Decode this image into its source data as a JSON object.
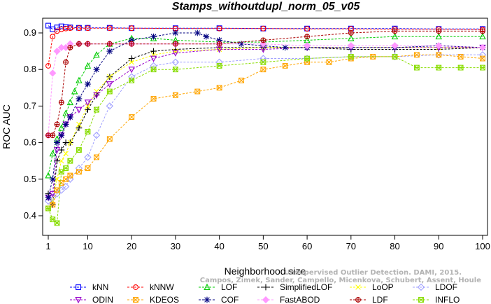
{
  "chart_data": {
    "type": "line",
    "title": "Stamps_withoutdupl_norm_05_v05",
    "xlabel": "Neighborhood size",
    "ylabel": "ROC AUC",
    "xlim": [
      0,
      100
    ],
    "ylim": [
      0.35,
      0.95
    ],
    "xticks": [
      1,
      10,
      20,
      30,
      40,
      50,
      60,
      70,
      80,
      90,
      100
    ],
    "yticks": [
      0.4,
      0.5,
      0.6,
      0.7,
      0.8,
      0.9
    ],
    "grid": false,
    "legend_position": "bottom",
    "watermark": [
      "Unsupervised Outlier Detection. DAMI, 2015.",
      "Campos, Zimek, Sander, Campello, Micenkova, Schubert, Assent, Houle"
    ],
    "series": [
      {
        "name": "kNN",
        "color": "#0000ff",
        "marker": "square",
        "x": [
          1,
          2,
          3,
          4,
          5,
          6,
          8,
          10,
          15,
          20,
          30,
          40,
          50,
          60,
          70,
          80,
          90,
          100
        ],
        "y": [
          0.92,
          0.91,
          0.915,
          0.918,
          0.916,
          0.915,
          0.914,
          0.914,
          0.914,
          0.913,
          0.913,
          0.913,
          0.912,
          0.912,
          0.912,
          0.912,
          0.911,
          0.911
        ]
      },
      {
        "name": "kNNW",
        "color": "#ff0000",
        "marker": "circle",
        "x": [
          1,
          2,
          3,
          4,
          5,
          6,
          8,
          10,
          15,
          20,
          30,
          40,
          50,
          60,
          70,
          80,
          90,
          100
        ],
        "y": [
          0.81,
          0.89,
          0.905,
          0.91,
          0.912,
          0.913,
          0.913,
          0.913,
          0.913,
          0.913,
          0.912,
          0.912,
          0.912,
          0.911,
          0.911,
          0.91,
          0.91,
          0.909
        ]
      },
      {
        "name": "LOF",
        "color": "#00cc00",
        "marker": "triangle",
        "x": [
          1,
          2,
          3,
          4,
          5,
          6,
          7,
          8,
          10,
          12,
          15,
          20,
          25,
          30,
          40,
          50,
          60,
          70,
          80,
          90,
          100
        ],
        "y": [
          0.51,
          0.57,
          0.61,
          0.64,
          0.68,
          0.71,
          0.74,
          0.77,
          0.81,
          0.84,
          0.87,
          0.885,
          0.885,
          0.88,
          0.875,
          0.875,
          0.88,
          0.885,
          0.89,
          0.89,
          0.89
        ]
      },
      {
        "name": "SimplifiedLOF",
        "color": "#000000",
        "marker": "plus",
        "x": [
          1,
          2,
          3,
          4,
          5,
          6,
          8,
          10,
          12,
          15,
          20,
          25,
          30,
          40,
          50,
          60,
          70,
          80,
          90,
          100
        ],
        "y": [
          0.46,
          0.43,
          0.55,
          0.58,
          0.6,
          0.6,
          0.64,
          0.69,
          0.73,
          0.78,
          0.83,
          0.85,
          0.855,
          0.86,
          0.86,
          0.86,
          0.855,
          0.855,
          0.855,
          0.86
        ]
      },
      {
        "name": "LoOP",
        "color": "#ffff00",
        "marker": "x",
        "x": [
          1,
          2,
          3,
          4,
          5,
          6,
          8,
          10,
          12,
          15,
          20,
          25,
          30,
          40,
          50,
          60,
          70,
          80,
          90,
          100
        ],
        "y": [
          0.45,
          0.44,
          0.5,
          0.55,
          0.57,
          0.6,
          0.65,
          0.7,
          0.74,
          0.78,
          0.82,
          0.84,
          0.85,
          0.855,
          0.86,
          0.86,
          0.86,
          0.86,
          0.86,
          0.86
        ]
      },
      {
        "name": "LDOF",
        "color": "#a0a0ff",
        "marker": "diamond",
        "x": [
          1,
          2,
          3,
          4,
          5,
          6,
          8,
          10,
          12,
          15,
          20,
          25,
          30,
          40,
          50,
          60,
          70,
          80,
          90,
          100
        ],
        "y": [
          0.44,
          0.45,
          0.46,
          0.47,
          0.48,
          0.5,
          0.53,
          0.56,
          0.62,
          0.7,
          0.78,
          0.81,
          0.82,
          0.82,
          0.83,
          0.83,
          0.835,
          0.835,
          0.84,
          0.84
        ]
      },
      {
        "name": "ODIN",
        "color": "#9900cc",
        "marker": "triangle-down",
        "x": [
          1,
          2,
          3,
          4,
          5,
          6,
          8,
          10,
          12,
          15,
          20,
          25,
          30,
          40,
          50,
          60,
          70,
          80,
          90,
          100
        ],
        "y": [
          0.45,
          0.46,
          0.58,
          0.62,
          0.65,
          0.67,
          0.69,
          0.71,
          0.73,
          0.76,
          0.8,
          0.83,
          0.845,
          0.855,
          0.855,
          0.86,
          0.86,
          0.86,
          0.86,
          0.86
        ]
      },
      {
        "name": "KDEOS",
        "color": "#ffa500",
        "marker": "square-x",
        "x": [
          1,
          2,
          3,
          4,
          5,
          6,
          8,
          10,
          12,
          15,
          20,
          25,
          30,
          35,
          40,
          45,
          50,
          55,
          60,
          65,
          70,
          75,
          80,
          85,
          90,
          95,
          100
        ],
        "y": [
          0.42,
          0.43,
          0.47,
          0.49,
          0.5,
          0.51,
          0.52,
          0.53,
          0.56,
          0.61,
          0.67,
          0.72,
          0.73,
          0.74,
          0.75,
          0.77,
          0.8,
          0.81,
          0.82,
          0.82,
          0.83,
          0.835,
          0.835,
          0.84,
          0.84,
          0.835,
          0.83
        ]
      },
      {
        "name": "COF",
        "color": "#000080",
        "marker": "asterisk",
        "x": [
          1,
          2,
          3,
          4,
          5,
          6,
          8,
          10,
          12,
          15,
          20,
          25,
          30,
          35,
          37,
          40,
          45,
          50,
          55,
          60,
          70,
          80,
          90,
          100
        ],
        "y": [
          0.45,
          0.5,
          0.6,
          0.62,
          0.65,
          0.67,
          0.72,
          0.76,
          0.8,
          0.85,
          0.88,
          0.89,
          0.9,
          0.9,
          0.89,
          0.88,
          0.87,
          0.865,
          0.86,
          0.86,
          0.86,
          0.86,
          0.865,
          0.86
        ]
      },
      {
        "name": "FastABOD",
        "color": "#ff99ff",
        "marker": "diamond-filled",
        "x": [
          1,
          2,
          3,
          4,
          5,
          6,
          8,
          10,
          15,
          20,
          30,
          40,
          50,
          60,
          70,
          80,
          90,
          100
        ],
        "y": [
          0.62,
          0.79,
          0.85,
          0.86,
          0.86,
          0.87,
          0.87,
          0.87,
          0.87,
          0.87,
          0.87,
          0.87,
          0.87,
          0.865,
          0.865,
          0.865,
          0.865,
          0.86
        ]
      },
      {
        "name": "LDF",
        "color": "#aa0000",
        "marker": "circle-plus",
        "x": [
          1,
          2,
          3,
          4,
          5,
          6,
          8,
          10,
          15,
          20,
          30,
          40,
          50,
          60,
          70,
          80,
          90,
          100
        ],
        "y": [
          0.62,
          0.62,
          0.65,
          0.71,
          0.82,
          0.86,
          0.87,
          0.87,
          0.87,
          0.87,
          0.87,
          0.87,
          0.88,
          0.89,
          0.9,
          0.905,
          0.905,
          0.905
        ]
      },
      {
        "name": "INFLO",
        "color": "#88dd00",
        "marker": "star-box",
        "x": [
          1,
          2,
          3,
          4,
          5,
          6,
          8,
          10,
          12,
          15,
          20,
          25,
          30,
          40,
          50,
          60,
          70,
          80,
          85,
          90,
          95,
          100
        ],
        "y": [
          0.42,
          0.39,
          0.38,
          0.52,
          0.53,
          0.55,
          0.58,
          0.63,
          0.69,
          0.74,
          0.77,
          0.8,
          0.8,
          0.81,
          0.82,
          0.83,
          0.835,
          0.835,
          0.805,
          0.805,
          0.805,
          0.805
        ]
      }
    ]
  }
}
